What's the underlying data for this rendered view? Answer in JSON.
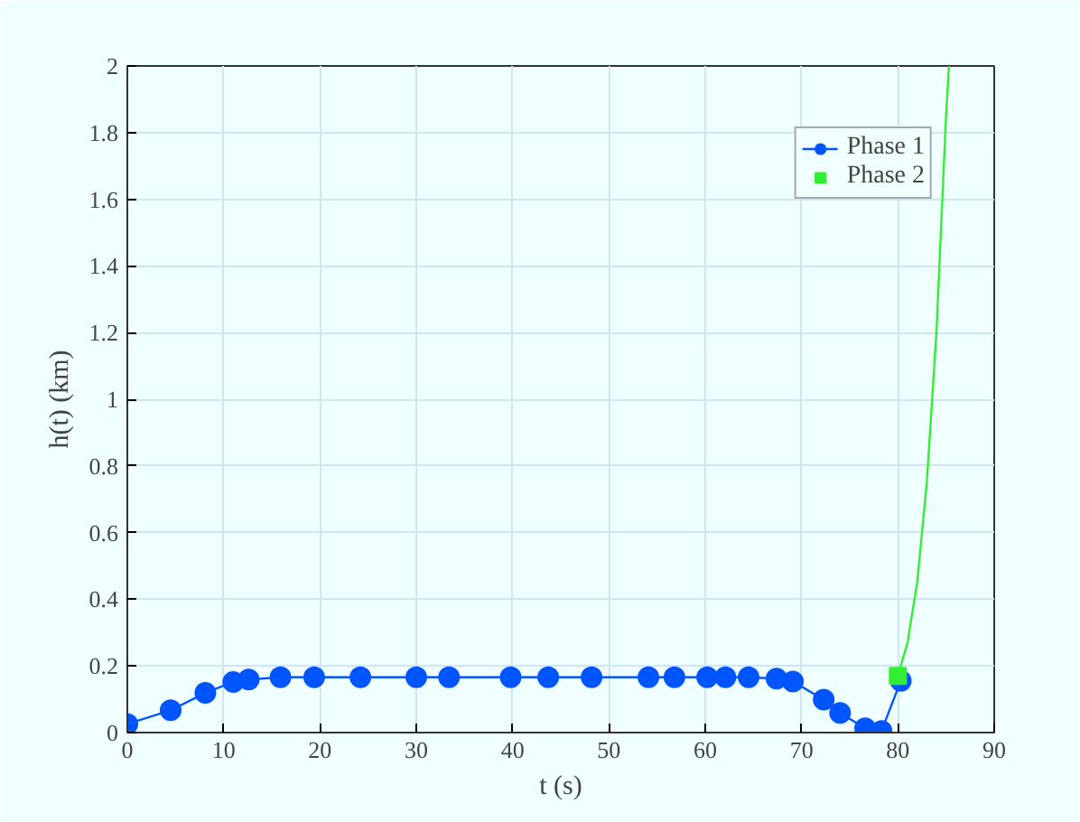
{
  "chart_data": {
    "type": "line",
    "xlabel": "t (s)",
    "ylabel": "h(t) (km)",
    "xlim": [
      0,
      90
    ],
    "ylim": [
      0,
      2
    ],
    "xticks": [
      0,
      10,
      20,
      30,
      40,
      50,
      60,
      70,
      80,
      90
    ],
    "yticks": [
      0,
      0.2,
      0.4,
      0.6,
      0.8,
      1,
      1.2,
      1.4,
      1.6,
      1.8,
      2
    ],
    "grid": true,
    "legend": "top right",
    "series": [
      {
        "name": "Phase 1",
        "color": "#0055ff",
        "marker": "circle",
        "x": [
          0,
          4.5,
          8.1,
          11,
          12.6,
          15.9,
          19.4,
          24.2,
          30,
          33.4,
          39.8,
          43.7,
          48.2,
          54.1,
          56.8,
          60.2,
          62.1,
          64.5,
          67.4,
          69.1,
          72.3,
          74,
          76.6,
          78.3,
          80.3
        ],
        "values": [
          0.026,
          0.067,
          0.119,
          0.152,
          0.159,
          0.166,
          0.166,
          0.166,
          0.166,
          0.166,
          0.166,
          0.166,
          0.166,
          0.166,
          0.166,
          0.166,
          0.166,
          0.166,
          0.162,
          0.153,
          0.099,
          0.059,
          0.013,
          0.005,
          0.155
        ]
      },
      {
        "color": "#33ee33",
        "marker": "none",
        "x": [
          80,
          81,
          82,
          83,
          84,
          85,
          85.3
        ],
        "values": [
          0.17,
          0.27,
          0.45,
          0.75,
          1.2,
          1.85,
          2
        ]
      },
      {
        "type": "scatter",
        "name": "Phase 2",
        "color": "#33ee33",
        "marker": "square",
        "x": [
          80
        ],
        "values": [
          0.17
        ]
      }
    ]
  }
}
